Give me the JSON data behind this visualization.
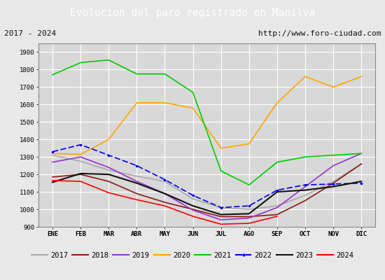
{
  "title": "Evolucion del paro registrado en Manilva",
  "subtitle_left": "2017 - 2024",
  "subtitle_right": "http://www.foro-ciudad.com",
  "months": [
    "ENE",
    "FEB",
    "MAR",
    "ABR",
    "MAY",
    "JUN",
    "JUL",
    "AGO",
    "SEP",
    "OCT",
    "NOV",
    "DIC"
  ],
  "ylim": [
    900,
    1950
  ],
  "yticks": [
    900,
    1000,
    1100,
    1200,
    1300,
    1400,
    1500,
    1600,
    1700,
    1800,
    1900
  ],
  "series": {
    "2017": {
      "color": "#aaaaaa",
      "linestyle": "-",
      "linewidth": 1.2,
      "data": [
        1310,
        1275,
        1225,
        1190,
        1160,
        1060,
        1010,
        1000,
        1020,
        1080,
        1160,
        1260
      ]
    },
    "2018": {
      "color": "#8b1a1a",
      "linestyle": "-",
      "linewidth": 1.2,
      "data": [
        1185,
        1200,
        1160,
        1090,
        1040,
        1000,
        958,
        958,
        970,
        1050,
        1150,
        1260
      ]
    },
    "2019": {
      "color": "#9932cc",
      "linestyle": "-",
      "linewidth": 1.2,
      "data": [
        1270,
        1300,
        1240,
        1160,
        1090,
        995,
        940,
        950,
        1010,
        1130,
        1250,
        1320
      ]
    },
    "2020": {
      "color": "#ffa500",
      "linestyle": "-",
      "linewidth": 1.2,
      "data": [
        1320,
        1315,
        1400,
        1610,
        1610,
        1580,
        1350,
        1375,
        1610,
        1760,
        1700,
        1760
      ]
    },
    "2021": {
      "color": "#00cc00",
      "linestyle": "-",
      "linewidth": 1.2,
      "data": [
        1770,
        1840,
        1855,
        1775,
        1775,
        1670,
        1220,
        1140,
        1270,
        1300,
        1310,
        1320
      ]
    },
    "2022": {
      "color": "#0000ee",
      "linestyle": "--",
      "linewidth": 1.2,
      "data": [
        1330,
        1370,
        1310,
        1250,
        1170,
        1080,
        1010,
        1020,
        1110,
        1140,
        1145,
        1150
      ]
    },
    "2023": {
      "color": "#111111",
      "linestyle": "-",
      "linewidth": 1.5,
      "data": [
        1155,
        1205,
        1200,
        1150,
        1090,
        1020,
        970,
        975,
        1100,
        1110,
        1130,
        1160
      ]
    },
    "2024": {
      "color": "#ff0000",
      "linestyle": "-",
      "linewidth": 1.2,
      "data": [
        1165,
        1160,
        1095,
        1055,
        1020,
        960,
        915,
        920,
        960,
        null,
        null,
        null
      ]
    }
  },
  "background_color": "#e8e8e8",
  "plot_bg_color": "#d8d8d8",
  "title_bg_color": "#5b8ccc",
  "title_color": "#ffffff",
  "grid_color": "#ffffff",
  "border_color": "#888888",
  "subtitle_box_color": "#f0f0f0"
}
